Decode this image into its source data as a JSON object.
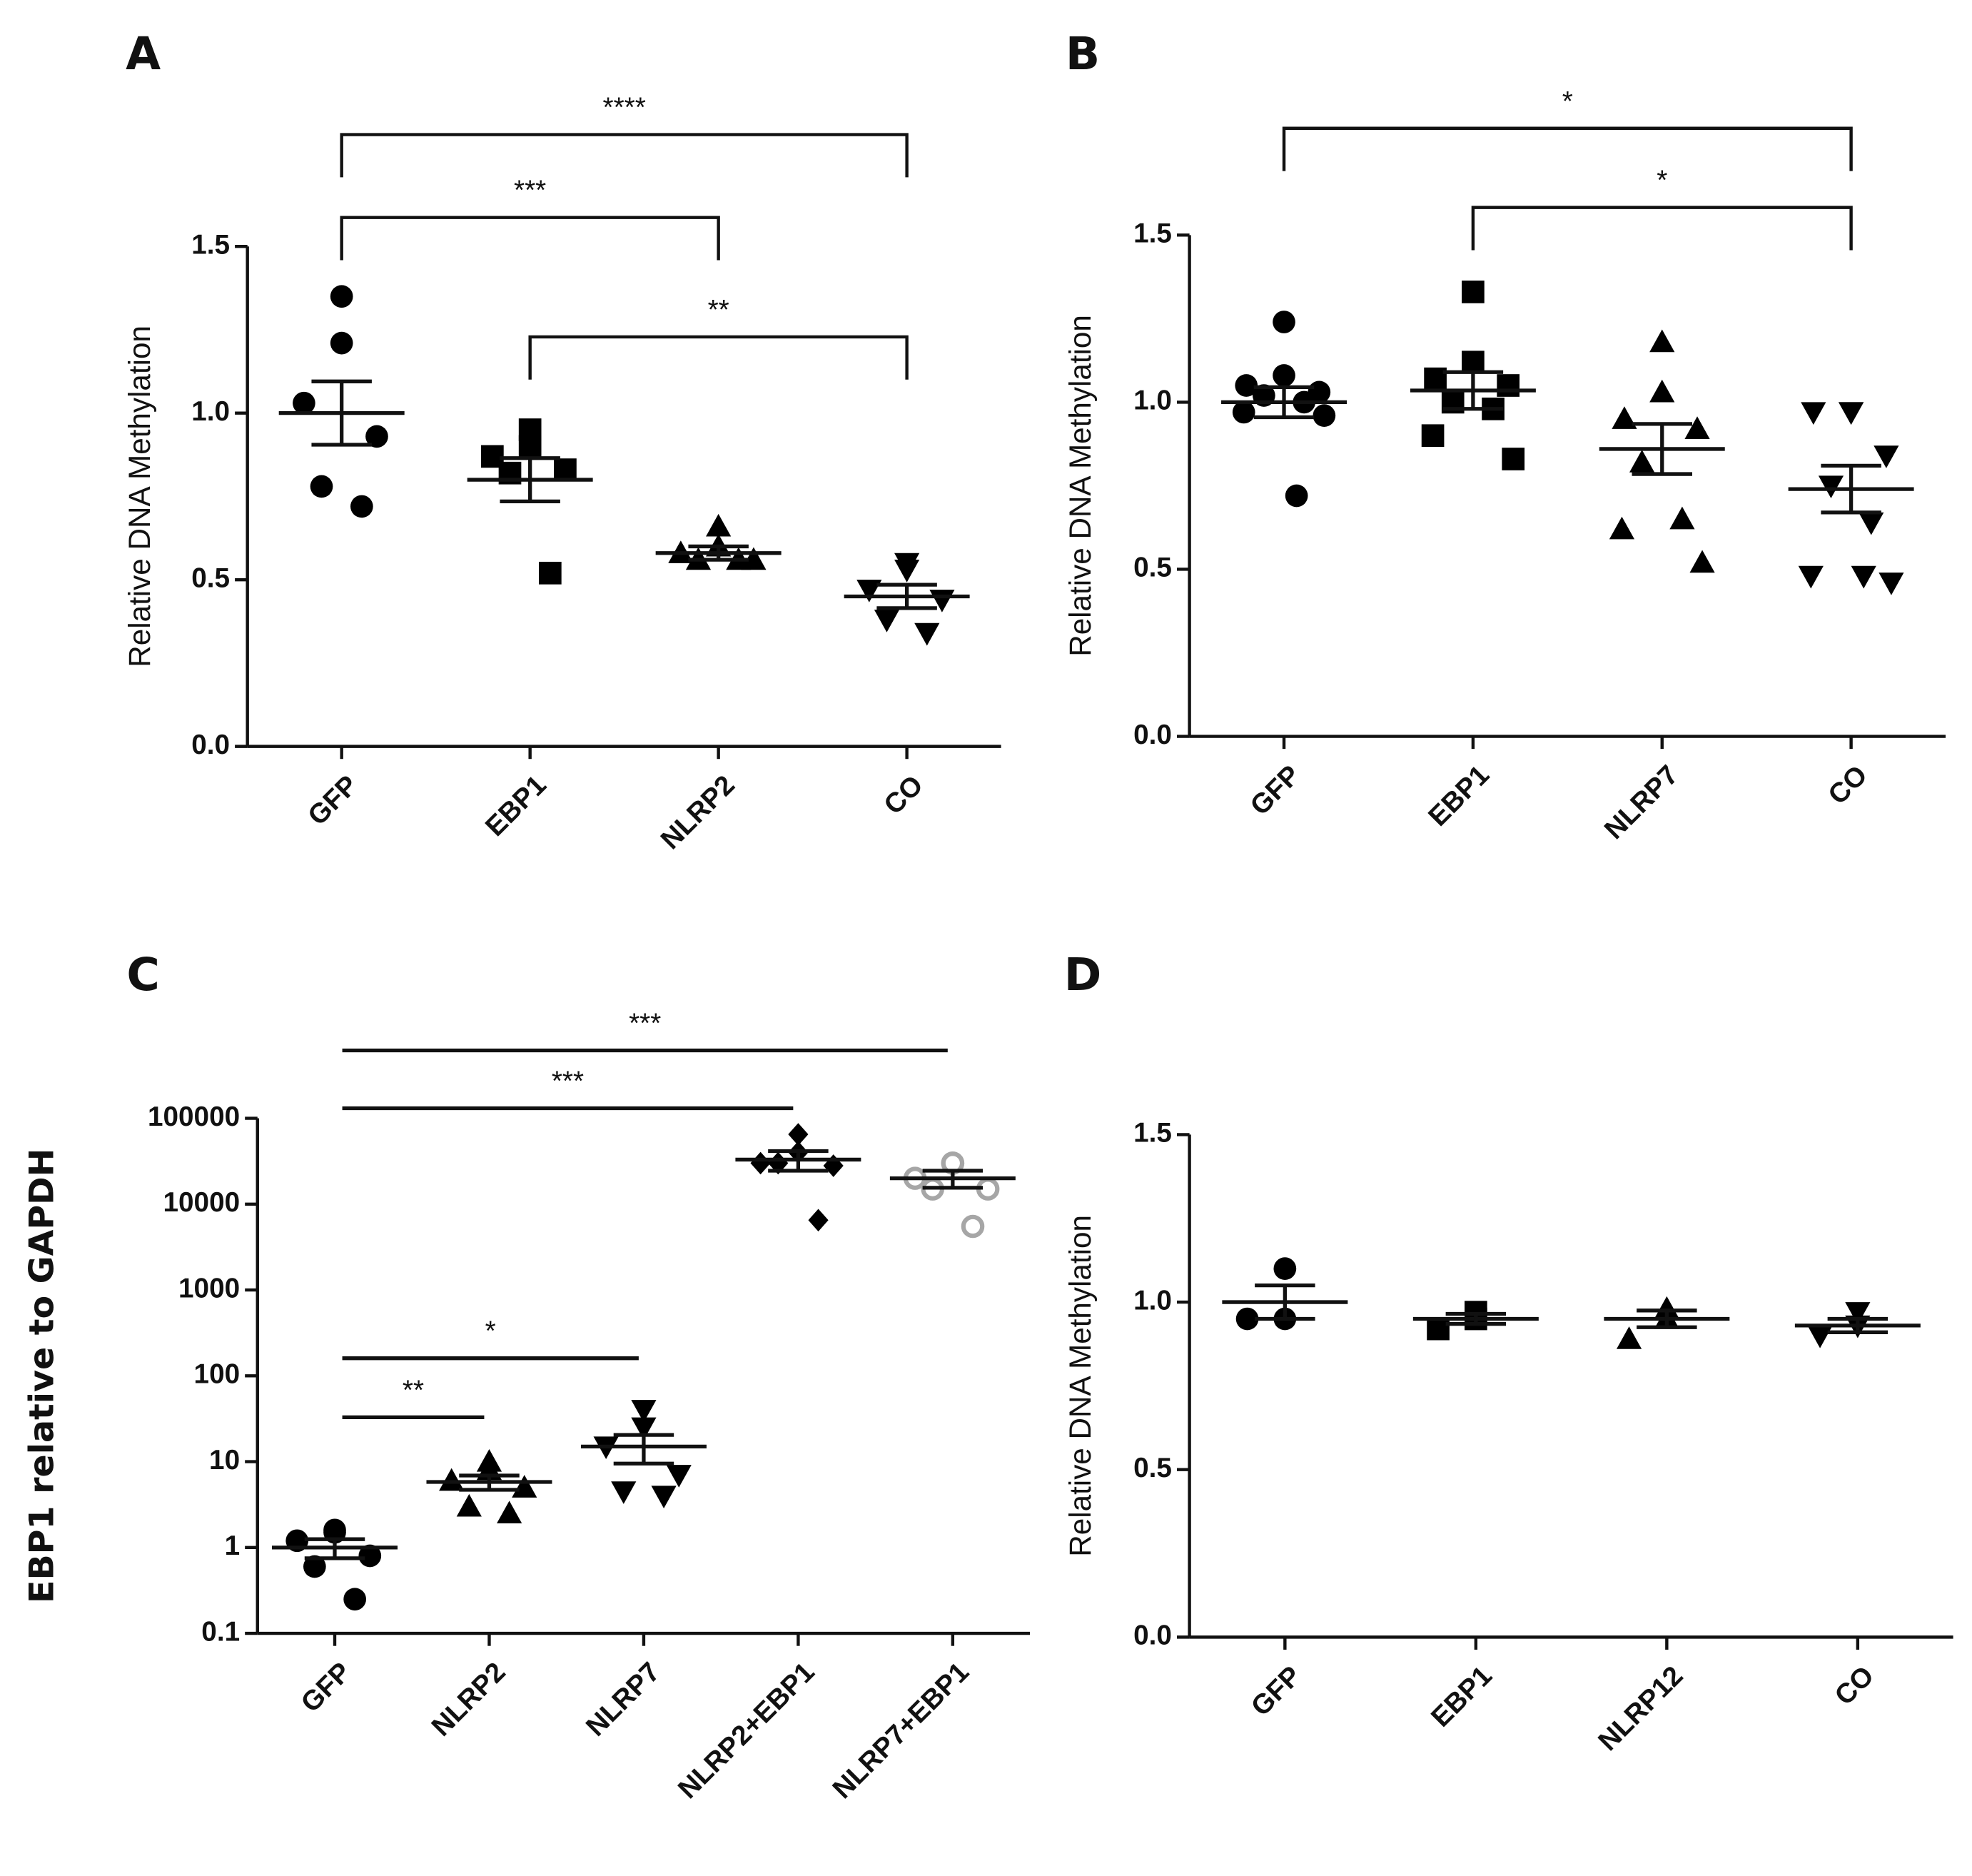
{
  "chart_data": [
    {
      "type": "strip",
      "panel": "A",
      "y_label": "Relative DNA Methylation",
      "categories": [
        "GFP",
        "EBP1",
        "NLRP2",
        "CO"
      ],
      "markers": [
        "circle",
        "square",
        "triangle",
        "triangle-down"
      ],
      "colors": [
        "#000000",
        "#000000",
        "#000000",
        "#000000"
      ],
      "values": [
        [
          1.35,
          1.21,
          1.03,
          0.93,
          0.78,
          0.72
        ],
        [
          0.95,
          0.9,
          0.87,
          0.83,
          0.82,
          0.52
        ],
        [
          0.66,
          0.6,
          0.58,
          0.56,
          0.56,
          0.56
        ],
        [
          0.55,
          0.53,
          0.47,
          0.44,
          0.38,
          0.34
        ]
      ],
      "means": [
        1.0,
        0.8,
        0.58,
        0.45
      ],
      "sems": [
        0.095,
        0.065,
        0.02,
        0.035
      ],
      "ylim": [
        0,
        1.5
      ],
      "yticks": [
        {
          "value": 0,
          "label": "0.0"
        },
        0.5,
        {
          "value": 1,
          "label": "1.0"
        },
        1.5
      ],
      "annotation_style": "bracket",
      "annotations": [
        {
          "text": "****",
          "from": "GFP",
          "to": "CO"
        },
        {
          "text": "***",
          "from": "GFP",
          "to": "NLRP2"
        },
        {
          "text": "**",
          "from": "EBP1",
          "to": "CO"
        }
      ]
    },
    {
      "type": "strip",
      "panel": "B",
      "y_label": "Relative DNA Methylation",
      "categories": [
        "GFP",
        "EBP1",
        "NLRP7",
        "CO"
      ],
      "markers": [
        "circle",
        "square",
        "triangle",
        "triangle-down"
      ],
      "colors": [
        "#000000",
        "#000000",
        "#000000",
        "#000000"
      ],
      "values": [
        [
          1.24,
          1.08,
          1.05,
          1.03,
          1.02,
          1.0,
          0.97,
          0.96,
          0.72
        ],
        [
          1.33,
          1.12,
          1.07,
          1.05,
          1.0,
          0.98,
          0.9,
          0.83
        ],
        [
          1.18,
          1.03,
          0.95,
          0.92,
          0.82,
          0.65,
          0.62,
          0.52
        ],
        [
          0.97,
          0.97,
          0.97,
          0.84,
          0.75,
          0.64,
          0.48,
          0.46,
          0.48
        ]
      ],
      "means": [
        1.0,
        1.035,
        0.86,
        0.74
      ],
      "sems": [
        0.045,
        0.055,
        0.075,
        0.07
      ],
      "ylim": [
        0,
        1.5
      ],
      "yticks": [
        {
          "value": 0,
          "label": "0.0"
        },
        0.5,
        {
          "value": 1,
          "label": "1.0"
        },
        1.5
      ],
      "annotation_style": "bracket",
      "annotations": [
        {
          "text": "*",
          "from": "GFP",
          "to": "CO"
        },
        {
          "text": "*",
          "from": "EBP1",
          "to": "CO"
        }
      ]
    },
    {
      "type": "strip",
      "panel": "C",
      "y_label": "EBP1 relative to GAPDH",
      "log_y": true,
      "categories": [
        "GFP",
        "NLRP2",
        "NLRP7",
        "NLRP2+EBP1",
        "NLRP7+EBP1"
      ],
      "markers": [
        "circle",
        "triangle",
        "triangle-down",
        "diamond",
        "open-circle"
      ],
      "colors": [
        "#000000",
        "#000000",
        "#000000",
        "#000000",
        "#a6a6a6"
      ],
      "values": [
        [
          1.6,
          1.5,
          1.2,
          0.8,
          0.6,
          0.25
        ],
        [
          10,
          8,
          6,
          5,
          3,
          2.5
        ],
        [
          40,
          25,
          15,
          7,
          4.5,
          4
        ],
        [
          65000,
          40000,
          30000,
          28000,
          30000,
          6500
        ],
        [
          30000,
          30000,
          20000,
          15000,
          15000,
          5500
        ]
      ],
      "means": [
        1.0,
        5.8,
        15,
        33000,
        20000
      ],
      "sems": [
        0.25,
        1.1,
        5.5,
        8500,
        4500
      ],
      "ylim": [
        0.1,
        100000
      ],
      "yticks": [
        0.1,
        1,
        10,
        100,
        1000,
        10000,
        100000
      ],
      "annotation_style": "line",
      "annotations": [
        {
          "text": "***",
          "from": "GFP",
          "to": "NLRP7+EBP1"
        },
        {
          "text": "***",
          "from": "GFP",
          "to": "NLRP2+EBP1"
        },
        {
          "text": "*",
          "from": "GFP",
          "to": "NLRP7"
        },
        {
          "text": "**",
          "from": "GFP",
          "to": "NLRP2"
        }
      ]
    },
    {
      "type": "strip",
      "panel": "D",
      "y_label": "Relative DNA Methylation",
      "categories": [
        "GFP",
        "EBP1",
        "NLRP12",
        "CO"
      ],
      "markers": [
        "circle",
        "square",
        "triangle",
        "triangle-down"
      ],
      "colors": [
        "#000000",
        "#000000",
        "#000000",
        "#000000"
      ],
      "values": [
        [
          1.1,
          0.95,
          0.95
        ],
        [
          0.97,
          0.95,
          0.92
        ],
        [
          0.98,
          0.95,
          0.89
        ],
        [
          0.97,
          0.93,
          0.9
        ]
      ],
      "means": [
        1.0,
        0.95,
        0.95,
        0.93
      ],
      "sems": [
        0.05,
        0.015,
        0.025,
        0.02
      ],
      "ylim": [
        0,
        1.5
      ],
      "yticks": [
        {
          "value": 0,
          "label": "0.0"
        },
        0.5,
        {
          "value": 1,
          "label": "1.0"
        },
        1.5
      ]
    }
  ]
}
